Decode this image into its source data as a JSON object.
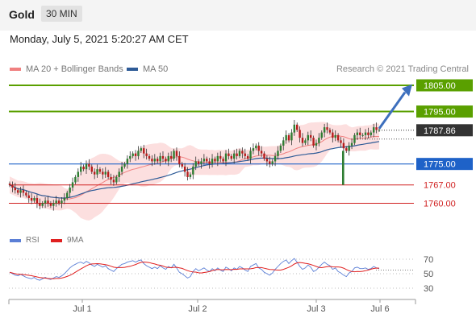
{
  "header": {
    "instrument": "Gold",
    "timeframe": "30 MIN"
  },
  "datetime": "Monday, July 5, 2021 5:20:27 AM CET",
  "credit": "Research © 2021 Trading Central",
  "legend": {
    "bb": {
      "label": "MA 20 + Bollinger Bands",
      "color": "#f08080"
    },
    "ma50": {
      "label": "MA 50",
      "color": "#2e5b97"
    }
  },
  "rsi_legend": {
    "rsi": {
      "label": "RSI",
      "color": "#5b7fd6"
    },
    "ma9": {
      "label": "9MA",
      "color": "#e02020"
    }
  },
  "chart_data": [
    {
      "type": "candlestick",
      "x_ticks": [
        "Jul 1",
        "Jul 2",
        "Jul 3",
        "Jul 6"
      ],
      "levels": [
        {
          "value": 1805.0,
          "label": "1805.00",
          "kind": "target",
          "color": "#5aa000"
        },
        {
          "value": 1795.0,
          "label": "1795.00",
          "kind": "resistance",
          "color": "#5aa000"
        },
        {
          "value": 1787.86,
          "label": "1787.86",
          "kind": "last",
          "color": "#333333"
        },
        {
          "value": 1775.0,
          "label": "1775.00",
          "kind": "pivot",
          "color": "#1e62c8"
        },
        {
          "value": 1767.0,
          "label": "1767.00",
          "kind": "support",
          "color": "#d02020"
        },
        {
          "value": 1760.0,
          "label": "1760.00",
          "kind": "support",
          "color": "#d02020"
        }
      ],
      "price_closes": [
        1767,
        1766,
        1765,
        1764,
        1765,
        1764,
        1763,
        1762,
        1761,
        1762,
        1760,
        1759,
        1760,
        1761,
        1760,
        1759,
        1760,
        1761,
        1760,
        1761,
        1762,
        1764,
        1766,
        1768,
        1770,
        1772,
        1774,
        1773,
        1775,
        1774,
        1772,
        1771,
        1773,
        1772,
        1771,
        1772,
        1770,
        1769,
        1768,
        1770,
        1772,
        1774,
        1775,
        1777,
        1778,
        1779,
        1778,
        1780,
        1781,
        1779,
        1778,
        1777,
        1776,
        1777,
        1776,
        1778,
        1777,
        1776,
        1778,
        1777,
        1780,
        1778,
        1775,
        1774,
        1772,
        1770,
        1771,
        1774,
        1776,
        1775,
        1776,
        1777,
        1776,
        1775,
        1777,
        1776,
        1778,
        1777,
        1776,
        1779,
        1778,
        1777,
        1779,
        1778,
        1780,
        1779,
        1778,
        1777,
        1780,
        1781,
        1782,
        1780,
        1779,
        1777,
        1776,
        1775,
        1776,
        1778,
        1780,
        1782,
        1784,
        1786,
        1784,
        1787,
        1790,
        1788,
        1785,
        1783,
        1784,
        1786,
        1785,
        1782,
        1783,
        1785,
        1787,
        1789,
        1788,
        1787,
        1785,
        1786,
        1784,
        1783,
        1781,
        1780,
        1782,
        1783,
        1786,
        1787,
        1786,
        1786,
        1787,
        1786,
        1787,
        1789,
        1788,
        1788
      ],
      "annotation": "arrow from last price toward 1805.00 target",
      "ma50_label": "MA 50",
      "bb_label": "MA 20 + Bollinger Bands"
    },
    {
      "type": "line",
      "name": "RSI",
      "y_ticks": [
        70,
        50,
        30
      ],
      "rsi_values": [
        52,
        50,
        48,
        47,
        49,
        47,
        45,
        44,
        43,
        45,
        42,
        41,
        43,
        45,
        43,
        42,
        44,
        46,
        45,
        47,
        50,
        54,
        58,
        61,
        63,
        65,
        66,
        64,
        67,
        65,
        62,
        60,
        63,
        61,
        59,
        61,
        57,
        55,
        53,
        57,
        60,
        63,
        64,
        66,
        67,
        68,
        66,
        68,
        69,
        64,
        61,
        59,
        57,
        59,
        57,
        61,
        58,
        56,
        60,
        58,
        63,
        58,
        52,
        50,
        47,
        44,
        46,
        53,
        57,
        54,
        56,
        58,
        55,
        53,
        57,
        54,
        58,
        55,
        53,
        59,
        57,
        54,
        58,
        56,
        60,
        58,
        55,
        53,
        60,
        62,
        64,
        58,
        56,
        52,
        50,
        48,
        51,
        56,
        60,
        64,
        67,
        69,
        64,
        68,
        71,
        66,
        60,
        56,
        58,
        62,
        59,
        53,
        55,
        59,
        63,
        66,
        63,
        61,
        56,
        58,
        53,
        51,
        48,
        46,
        51,
        53,
        58,
        59,
        57,
        57,
        58,
        56,
        57,
        60,
        58,
        57
      ],
      "ma9_label": "9MA"
    }
  ]
}
